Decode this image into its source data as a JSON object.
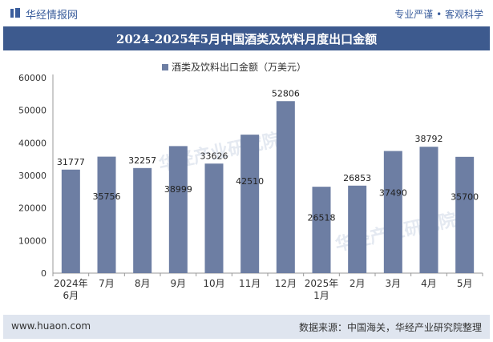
{
  "header": {
    "brand": "华经情报网",
    "slogan": "专业严谨 • 客观科学"
  },
  "title": "2024-2025年5月中国酒类及饮料月度出口金额",
  "footer": {
    "site": "www.huaon.com",
    "source": "数据来源：中国海关，华经产业研究院整理"
  },
  "watermark": "华经产业研究院",
  "colors": {
    "bar": "#6d7ea3",
    "title_bg": "#3d5a8e",
    "footer_bg": "#dfe5ef"
  },
  "chart_data": {
    "type": "bar",
    "categories": [
      "2024年\n6月",
      "7月",
      "8月",
      "9月",
      "10月",
      "11月",
      "12月",
      "2025年\n1月",
      "2月",
      "3月",
      "4月",
      "5月"
    ],
    "series": [
      {
        "name": "酒类及饮料出口金额（万美元）",
        "values": [
          31777,
          35756,
          32257,
          38999,
          33626,
          42510,
          52806,
          26518,
          26853,
          37490,
          38792,
          35700
        ]
      }
    ],
    "ylim": [
      0,
      60000
    ],
    "yticks": [
      0,
      10000,
      20000,
      30000,
      40000,
      50000,
      60000
    ],
    "legend": "top-center",
    "grid": false
  }
}
